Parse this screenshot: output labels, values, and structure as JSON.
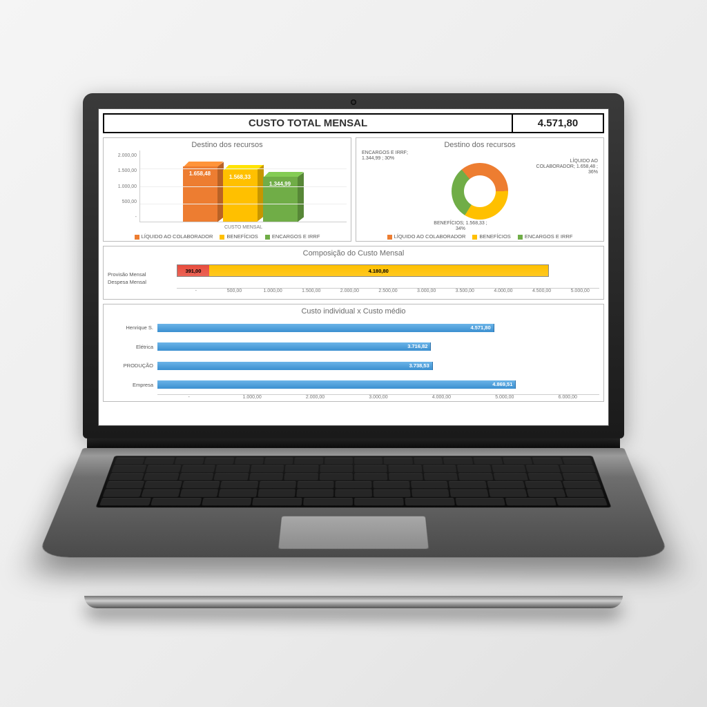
{
  "header": {
    "title": "CUSTO TOTAL MENSAL",
    "value": "4.571,80"
  },
  "colors": {
    "orange": "#ed7d31",
    "yellow": "#ffc000",
    "green": "#70ad47",
    "blue": "#4a98d8",
    "red": "#e84c3d"
  },
  "bar3d": {
    "title": "Destino dos recursos",
    "ylim": [
      0,
      2000
    ],
    "yticks": [
      "2.000,00",
      "1.500,00",
      "1.000,00",
      "500,00",
      "-"
    ],
    "x_label": "CUSTO MENSAL",
    "series": [
      {
        "name": "LÍQUIDO AO COLABORADOR",
        "label": "1.658,48",
        "value": 1658.48,
        "color": "#ed7d31"
      },
      {
        "name": "BENEFÍCIOS",
        "label": "1.568,33",
        "value": 1568.33,
        "color": "#ffc000"
      },
      {
        "name": "ENCARGOS E IRRF",
        "label": "1.344,99",
        "value": 1344.99,
        "color": "#70ad47"
      }
    ]
  },
  "donut": {
    "title": "Destino dos recursos",
    "series": [
      {
        "name": "LÍQUIDO AO COLABORADOR",
        "label": "LÍQUIDO AO COLABORADOR; 1.658,48 ; 36%",
        "pct": 36,
        "color": "#ed7d31"
      },
      {
        "name": "BENEFÍCIOS",
        "label": "BENEFÍCIOS; 1.568,33 ; 34%",
        "pct": 34,
        "color": "#ffc000"
      },
      {
        "name": "ENCARGOS E IRRF",
        "label": "ENCARGOS E IRRF; 1.344,99 ; 30%",
        "pct": 30,
        "color": "#70ad47"
      }
    ]
  },
  "stacked": {
    "title": "Composição do Custo Mensal",
    "legend": [
      {
        "name": "Provisão Mensal",
        "color": "#ed7d31"
      },
      {
        "name": "Despesa Mensal",
        "color": "#ffc000"
      }
    ],
    "segments": [
      {
        "label": "391,00",
        "value": 391.0,
        "color": "#e84c3d"
      },
      {
        "label": "4.180,80",
        "value": 4180.8,
        "color": "#ffc000"
      }
    ],
    "xmax": 5000,
    "xticks": [
      "-",
      "500,00",
      "1.000,00",
      "1.500,00",
      "2.000,00",
      "2.500,00",
      "3.000,00",
      "3.500,00",
      "4.000,00",
      "4.500,00",
      "5.000,00"
    ]
  },
  "hbar": {
    "title": "Custo individual x Custo médio",
    "xmax": 6000,
    "xticks": [
      "-",
      "1.000,00",
      "2.000,00",
      "3.000,00",
      "4.000,00",
      "5.000,00",
      "6.000,00"
    ],
    "rows": [
      {
        "name": "Henrique S.",
        "label": "4.571,80",
        "value": 4571.8
      },
      {
        "name": "Elétrica",
        "label": "3.716,82",
        "value": 3716.82
      },
      {
        "name": "PRODUÇÃO",
        "label": "3.738,53",
        "value": 3738.53
      },
      {
        "name": "Empresa",
        "label": "4.869,51",
        "value": 4869.51
      }
    ],
    "bar_color": "#4a98d8"
  }
}
